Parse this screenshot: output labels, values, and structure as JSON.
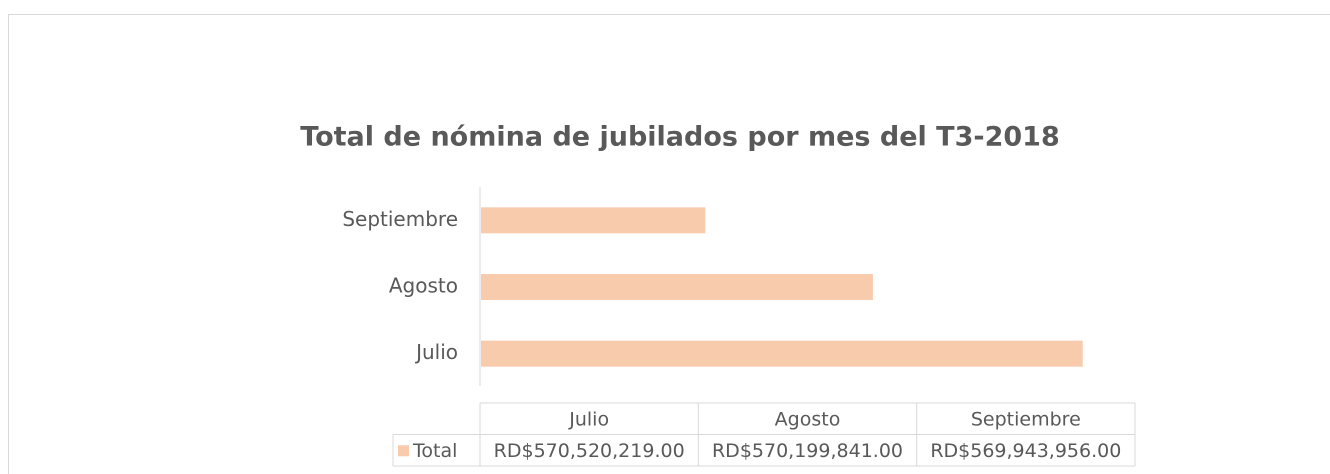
{
  "chart_data": {
    "type": "barh",
    "title": "Total de nómina de jubilados por mes del T3-2018",
    "categories": [
      "Julio",
      "Agosto",
      "Septiembre"
    ],
    "series": [
      {
        "name": "Total",
        "color": "#f8cbad",
        "values": [
          570520219,
          570199841,
          569943956
        ],
        "value_labels": [
          "RD$570,520,219.00",
          "RD$570,199,841.00",
          "RD$569,943,956.00"
        ]
      }
    ],
    "xlim": [
      569600000,
      570600000
    ],
    "data_table": true
  }
}
